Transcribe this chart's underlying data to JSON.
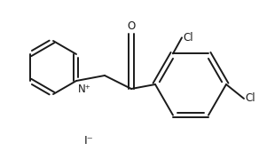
{
  "bg_color": "#ffffff",
  "line_color": "#1a1a1a",
  "line_width": 1.4,
  "font_size": 8.5,
  "iodide_label": "I⁻",
  "nitrogen_label": "N⁺",
  "oxygen_label": "O",
  "cl_label": "Cl",
  "figsize": [
    2.92,
    1.88
  ],
  "dpi": 100
}
